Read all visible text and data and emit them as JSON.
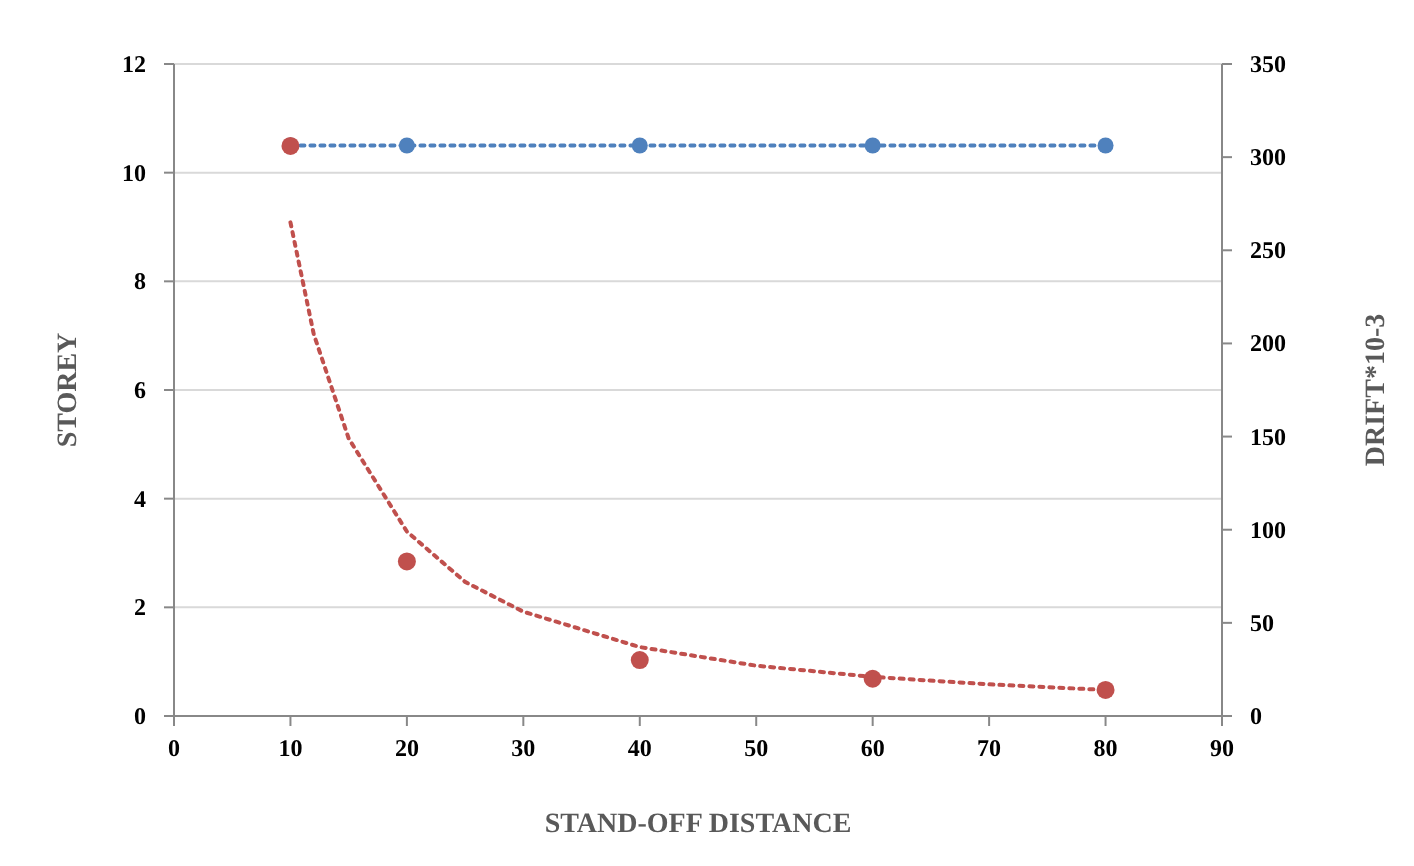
{
  "chart_data": {
    "type": "line",
    "xlabel": "STAND-OFF DISTANCE",
    "ylabel": "STOREY",
    "y2label": "DRIFT*10-3",
    "x": [
      10,
      20,
      40,
      60,
      80
    ],
    "xlim": [
      0,
      90
    ],
    "xticks": [
      0,
      10,
      20,
      30,
      40,
      50,
      60,
      70,
      80,
      90
    ],
    "ylim": [
      0,
      12
    ],
    "yticks": [
      0,
      2,
      4,
      6,
      8,
      10,
      12
    ],
    "y2lim": [
      0,
      350
    ],
    "y2ticks": [
      0,
      50,
      100,
      150,
      200,
      250,
      300,
      350
    ],
    "grid": "y",
    "series": [
      {
        "axis": "y",
        "color": "#4f81bd",
        "marker": "circle",
        "line_style": "dotted",
        "values": [
          10.5,
          10.5,
          10.5,
          10.5,
          10.5
        ]
      },
      {
        "type": "scatter",
        "axis": "y2",
        "color": "#c0504d",
        "marker": "circle",
        "values": [
          306,
          83,
          30,
          20,
          14
        ]
      },
      {
        "type": "line",
        "axis": "y2",
        "color": "#c0504d",
        "marker": "none",
        "line_style": "dotted",
        "x": [
          10,
          12,
          15,
          20,
          25,
          30,
          40,
          50,
          60,
          70,
          80
        ],
        "values": [
          265,
          205,
          149,
          99,
          72,
          56,
          37,
          27,
          21,
          17,
          14
        ]
      }
    ]
  }
}
